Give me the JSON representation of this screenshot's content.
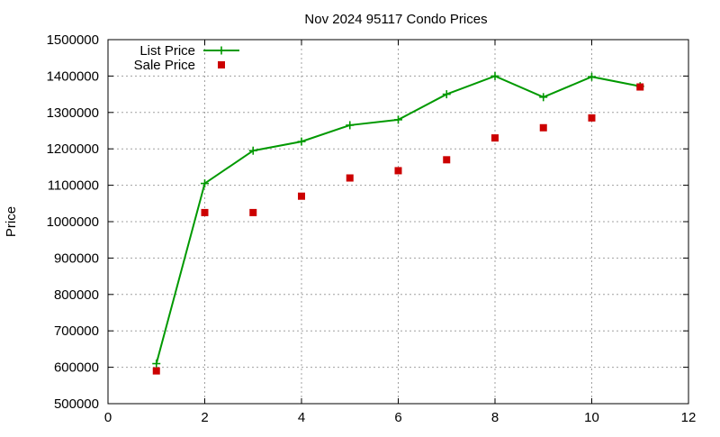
{
  "chart_data": {
    "type": "line",
    "title": "Nov 2024 95117 Condo Prices",
    "xlabel": "",
    "ylabel": "Price",
    "xlim": [
      0,
      12
    ],
    "ylim": [
      500000,
      1500000
    ],
    "x_ticks": [
      0,
      2,
      4,
      6,
      8,
      10,
      12
    ],
    "x_tick_labels": [
      "0",
      "2",
      "4",
      "6",
      "8",
      "10",
      "12"
    ],
    "y_ticks": [
      500000,
      600000,
      700000,
      800000,
      900000,
      1000000,
      1100000,
      1200000,
      1300000,
      1400000,
      1500000
    ],
    "y_tick_labels": [
      "500000",
      "600000",
      "700000",
      "800000",
      "900000",
      "1000000",
      "1100000",
      "1200000",
      "1300000",
      "1400000",
      "1500000"
    ],
    "grid": true,
    "legend_position": "top-left",
    "series": [
      {
        "name": "List Price",
        "style": "line-with-plus-markers",
        "color": "#009900",
        "x": [
          1,
          2,
          3,
          4,
          5,
          6,
          7,
          8,
          9,
          10,
          11
        ],
        "y": [
          610000,
          1105000,
          1195000,
          1220000,
          1265000,
          1280000,
          1350000,
          1400000,
          1342000,
          1398000,
          1372000
        ]
      },
      {
        "name": "Sale Price",
        "style": "square-markers",
        "color": "#cc0000",
        "x": [
          1,
          2,
          3,
          4,
          5,
          6,
          7,
          8,
          9,
          10,
          11
        ],
        "y": [
          590000,
          1025000,
          1025000,
          1070000,
          1120000,
          1140000,
          1170000,
          1230000,
          1258000,
          1285000,
          1370000
        ]
      }
    ]
  }
}
